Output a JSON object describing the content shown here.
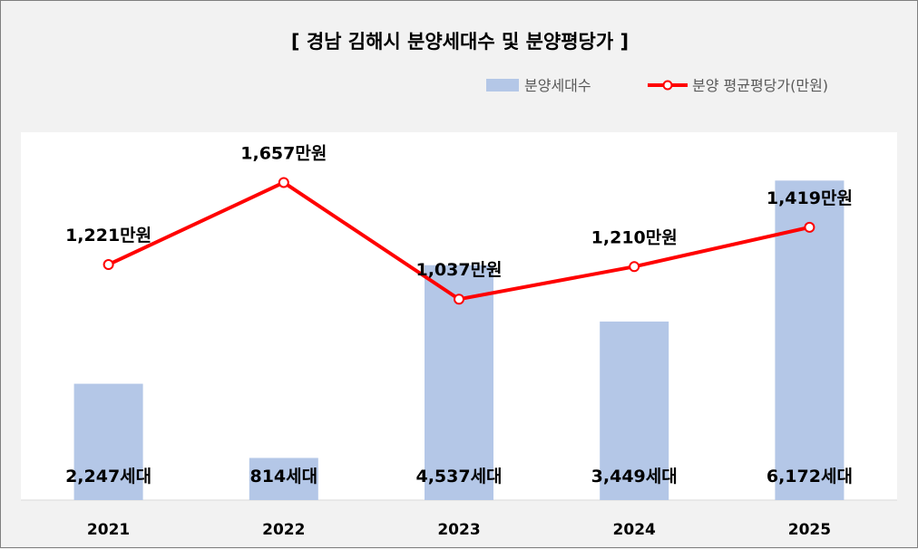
{
  "chart_data": {
    "type": "bar+line",
    "title": "[ 경남 김해시 분양세대수 및 분양평당가 ]",
    "categories": [
      "2021",
      "2022",
      "2023",
      "2024",
      "2025"
    ],
    "series": [
      {
        "name": "분양세대수",
        "kind": "bar",
        "color": "#b4c7e7",
        "values": [
          2247,
          814,
          4537,
          3449,
          6172
        ],
        "labels": [
          "2,247세대",
          "814세대",
          "4,537세대",
          "3,449세대",
          "6,172세대"
        ]
      },
      {
        "name": "분양 평균평당가(만원)",
        "kind": "line",
        "color": "#ff0000",
        "values": [
          1221,
          1657,
          1037,
          1210,
          1419
        ],
        "labels": [
          "1,221만원",
          "1,657만원",
          "1,037만원",
          "1,210만원",
          "1,419만원"
        ]
      }
    ],
    "bar_axis_range": [
      0,
      7000
    ],
    "line_axis_range": [
      600,
      1900
    ],
    "gridlines": false,
    "legend_position": "top-right"
  }
}
